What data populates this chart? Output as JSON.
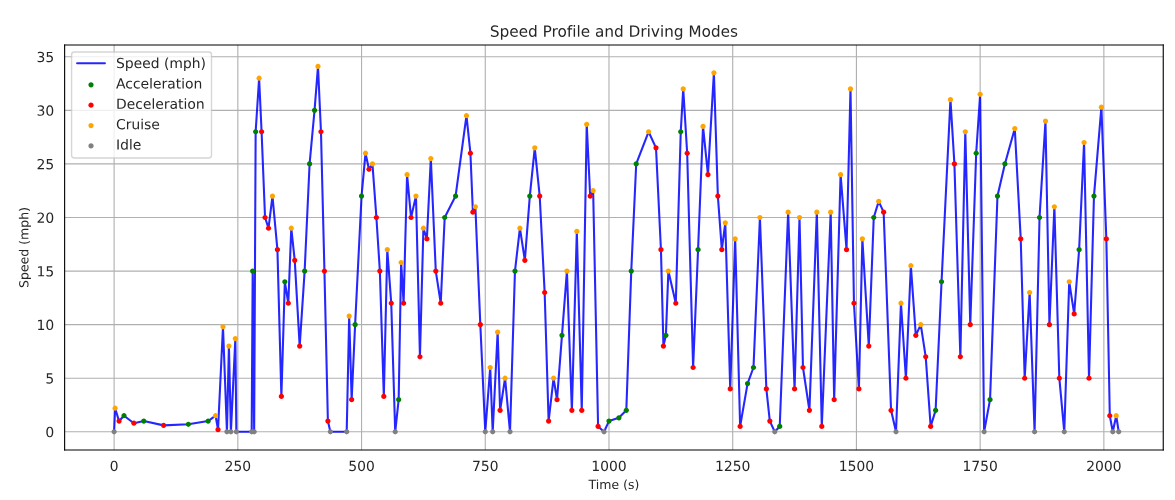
{
  "chart_data": {
    "type": "line",
    "title": "Speed Profile and Driving Modes",
    "xlabel": "Time (s)",
    "ylabel": "Speed (mph)",
    "xlim": [
      -100,
      2120
    ],
    "ylim": [
      -1.7,
      36.1
    ],
    "xticks": [
      0,
      250,
      500,
      750,
      1000,
      1250,
      1500,
      1750,
      2000
    ],
    "yticks": [
      0,
      5,
      10,
      15,
      20,
      25,
      30,
      35
    ],
    "grid": true,
    "legend": "top left",
    "series": [
      {
        "name": "Speed (mph)",
        "color": "#0000ff",
        "marker": "none",
        "x": [
          0,
          2,
          10,
          20,
          40,
          60,
          100,
          150,
          190,
          205,
          210,
          220,
          228,
          232,
          236,
          245,
          247,
          278,
          280,
          283,
          286,
          293,
          298,
          305,
          312,
          320,
          330,
          338,
          345,
          352,
          358,
          365,
          375,
          385,
          395,
          405,
          412,
          418,
          425,
          432,
          437,
          470,
          475,
          480,
          487,
          500,
          508,
          515,
          522,
          530,
          537,
          545,
          552,
          560,
          568,
          575,
          580,
          585,
          592,
          600,
          610,
          618,
          625,
          632,
          640,
          650,
          660,
          668,
          690,
          712,
          720,
          725,
          730,
          740,
          750,
          760,
          765,
          775,
          780,
          790,
          800,
          810,
          820,
          830,
          840,
          850,
          860,
          870,
          878,
          888,
          895,
          905,
          915,
          925,
          935,
          945,
          955,
          962,
          968,
          978,
          990,
          1000,
          1020,
          1035,
          1045,
          1055,
          1080,
          1095,
          1105,
          1110,
          1115,
          1120,
          1135,
          1145,
          1150,
          1158,
          1170,
          1180,
          1190,
          1200,
          1212,
          1220,
          1228,
          1235,
          1245,
          1255,
          1265,
          1280,
          1292,
          1305,
          1318,
          1325,
          1335,
          1345,
          1362,
          1375,
          1385,
          1392,
          1405,
          1420,
          1430,
          1448,
          1455,
          1468,
          1480,
          1488,
          1495,
          1505,
          1512,
          1525,
          1535,
          1545,
          1555,
          1570,
          1580,
          1590,
          1600,
          1610,
          1620,
          1630,
          1640,
          1650,
          1660,
          1672,
          1690,
          1698,
          1710,
          1720,
          1730,
          1742,
          1750,
          1758,
          1770,
          1785,
          1800,
          1820,
          1832,
          1840,
          1850,
          1860,
          1870,
          1882,
          1890,
          1900,
          1910,
          1920,
          1930,
          1940,
          1950,
          1960,
          1970,
          1980,
          1995,
          2005,
          2012,
          2018,
          2025,
          2030
        ],
        "values": [
          0,
          2.2,
          1,
          1.5,
          0.8,
          1,
          0.6,
          0.7,
          1,
          1.5,
          0.2,
          9.8,
          0,
          8,
          0,
          8.7,
          0,
          0,
          15,
          0,
          28,
          33,
          28,
          20,
          19,
          22,
          17,
          3.3,
          14,
          12,
          19,
          16,
          8,
          15,
          25,
          30,
          34.1,
          28,
          15,
          1,
          0,
          0,
          10.8,
          3,
          10,
          22,
          26,
          24.5,
          25,
          20,
          15,
          3.3,
          17,
          12,
          0,
          3,
          15.8,
          12,
          24,
          20,
          22,
          7,
          19,
          18,
          25.5,
          15,
          12,
          20,
          22,
          29.5,
          26,
          20.5,
          21,
          10,
          0,
          6,
          0,
          9.3,
          2,
          5,
          0,
          15,
          19,
          16,
          22,
          26.5,
          22,
          13,
          1,
          5,
          3,
          9,
          15,
          2,
          18.7,
          2,
          28.7,
          22,
          22.5,
          0.5,
          0,
          1,
          1.3,
          2,
          15,
          25,
          28,
          26.5,
          17,
          8,
          9,
          15,
          12,
          28,
          32,
          26,
          6,
          17,
          28.5,
          24,
          33.5,
          22,
          17,
          19.5,
          4,
          18,
          0.5,
          4.5,
          6,
          20,
          4,
          1,
          0,
          0.5,
          20.5,
          4,
          20,
          6,
          2,
          20.5,
          0.5,
          20.5,
          3,
          24,
          17,
          32,
          12,
          4,
          18,
          8,
          20,
          21.5,
          20.5,
          2,
          0,
          12,
          5,
          15.5,
          9,
          10,
          7,
          0.5,
          2,
          14,
          31,
          25,
          7,
          28,
          10,
          26,
          31.5,
          0,
          3,
          22,
          25,
          28.3,
          18,
          5,
          13,
          0,
          20,
          29,
          10,
          21,
          5,
          0,
          14,
          11,
          17,
          27,
          5,
          22,
          30.3,
          18,
          1.5,
          0,
          1.5,
          0
        ]
      },
      {
        "name": "Acceleration",
        "type": "scatter",
        "color": "#008000",
        "marker": "circle",
        "x": [
          20,
          60,
          150,
          190,
          280,
          286,
          345,
          385,
          395,
          405,
          487,
          500,
          575,
          668,
          690,
          810,
          840,
          905,
          1000,
          1020,
          1035,
          1045,
          1055,
          1115,
          1145,
          1180,
          1280,
          1292,
          1345,
          1535,
          1660,
          1672,
          1742,
          1770,
          1785,
          1800,
          1870,
          1950,
          1980
        ],
        "values": [
          1.5,
          1,
          0.7,
          1,
          15,
          28,
          14,
          15,
          25,
          30,
          10,
          22,
          3,
          20,
          22,
          15,
          22,
          9,
          1,
          1.3,
          2,
          15,
          25,
          9,
          28,
          17,
          4.5,
          6,
          0.5,
          20,
          2,
          14,
          26,
          3,
          22,
          25,
          20,
          17,
          22
        ]
      },
      {
        "name": "Deceleration",
        "type": "scatter",
        "color": "#ff0000",
        "marker": "circle",
        "x": [
          10,
          40,
          100,
          210,
          298,
          305,
          312,
          330,
          338,
          352,
          365,
          375,
          418,
          425,
          432,
          480,
          515,
          530,
          537,
          545,
          560,
          585,
          600,
          618,
          632,
          650,
          660,
          720,
          725,
          740,
          780,
          830,
          860,
          870,
          878,
          895,
          925,
          945,
          962,
          978,
          1095,
          1105,
          1110,
          1135,
          1158,
          1170,
          1200,
          1220,
          1228,
          1245,
          1265,
          1318,
          1325,
          1375,
          1392,
          1405,
          1430,
          1455,
          1480,
          1495,
          1505,
          1525,
          1555,
          1570,
          1600,
          1620,
          1640,
          1650,
          1698,
          1710,
          1730,
          1832,
          1840,
          1890,
          1910,
          1940,
          1970,
          2005,
          2012
        ],
        "values": [
          1,
          0.8,
          0.6,
          0.2,
          28,
          20,
          19,
          17,
          3.3,
          12,
          16,
          8,
          28,
          15,
          1,
          3,
          24.5,
          20,
          15,
          3.3,
          12,
          12,
          20,
          7,
          18,
          15,
          12,
          26,
          20.5,
          10,
          2,
          16,
          22,
          13,
          1,
          3,
          2,
          2,
          22,
          0.5,
          26.5,
          17,
          8,
          12,
          26,
          6,
          24,
          22,
          17,
          4,
          0.5,
          4,
          1,
          4,
          6,
          2,
          0.5,
          3,
          17,
          12,
          4,
          8,
          20.5,
          2,
          5,
          9,
          7,
          0.5,
          25,
          7,
          10,
          18,
          5,
          10,
          5,
          11,
          5,
          18,
          1.5
        ]
      },
      {
        "name": "Cruise",
        "type": "scatter",
        "color": "#ffa500",
        "marker": "circle",
        "x": [
          2,
          205,
          220,
          232,
          245,
          293,
          320,
          358,
          412,
          475,
          508,
          522,
          552,
          580,
          592,
          610,
          625,
          640,
          712,
          730,
          760,
          775,
          790,
          820,
          850,
          888,
          915,
          935,
          955,
          968,
          1080,
          1120,
          1150,
          1190,
          1212,
          1235,
          1255,
          1305,
          1362,
          1385,
          1420,
          1448,
          1468,
          1488,
          1512,
          1545,
          1590,
          1610,
          1630,
          1690,
          1720,
          1750,
          1820,
          1850,
          1882,
          1900,
          1930,
          1960,
          1995,
          2025
        ],
        "values": [
          2.2,
          1.5,
          9.8,
          8,
          8.7,
          33,
          22,
          19,
          34.1,
          10.8,
          26,
          25,
          17,
          15.8,
          24,
          22,
          19,
          25.5,
          29.5,
          21,
          6,
          9.3,
          5,
          19,
          26.5,
          5,
          15,
          18.7,
          28.7,
          22.5,
          28,
          15,
          32,
          28.5,
          33.5,
          19.5,
          18,
          20,
          20.5,
          20,
          20.5,
          20.5,
          24,
          32,
          18,
          21.5,
          12,
          15.5,
          10,
          31,
          28,
          31.5,
          28.3,
          13,
          29,
          21,
          14,
          27,
          30.3,
          1.5
        ]
      },
      {
        "name": "Idle",
        "type": "scatter",
        "color": "#808080",
        "marker": "circle",
        "x": [
          0,
          228,
          236,
          247,
          278,
          283,
          437,
          470,
          568,
          750,
          765,
          800,
          990,
          1335,
          1580,
          1758,
          1860,
          1920,
          2018,
          2030
        ],
        "values": [
          0,
          0,
          0,
          0,
          0,
          0,
          0,
          0,
          0,
          0,
          0,
          0,
          0,
          0,
          0,
          0,
          0,
          0,
          0,
          0
        ]
      }
    ]
  }
}
